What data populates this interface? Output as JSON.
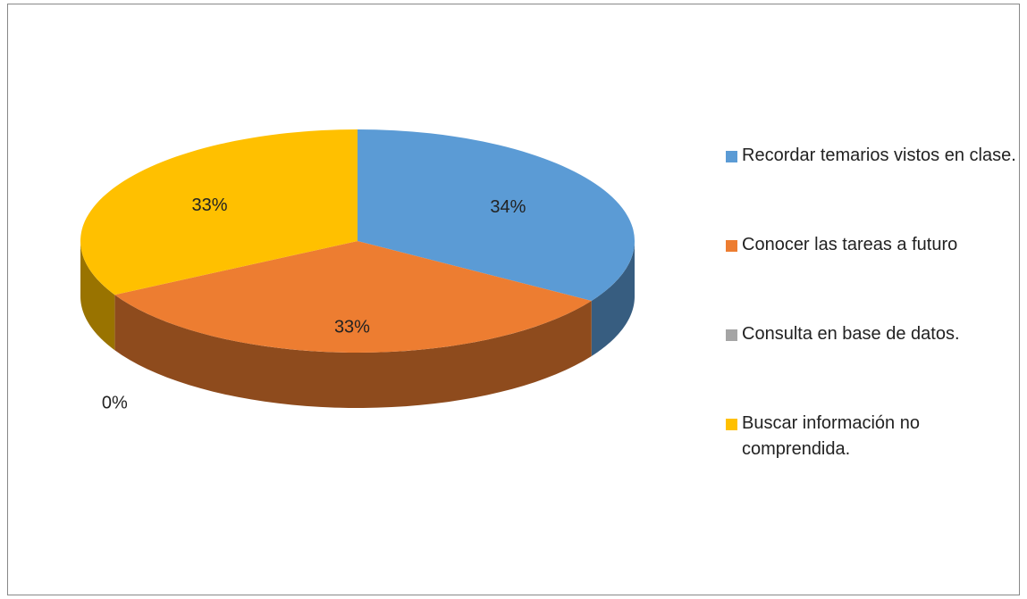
{
  "chart_data": {
    "type": "pie",
    "categories": [
      "Recordar temarios vistos en clase.",
      "Conocer las tareas a futuro",
      "Consulta en base de datos.",
      "Buscar información no comprendida."
    ],
    "values": [
      34,
      33,
      0,
      33
    ],
    "value_labels": [
      "34%",
      "33%",
      "0%",
      "33%"
    ],
    "colors": [
      "#5b9bd5",
      "#ed7d31",
      "#a5a5a5",
      "#ffc000"
    ],
    "legend": "right"
  }
}
